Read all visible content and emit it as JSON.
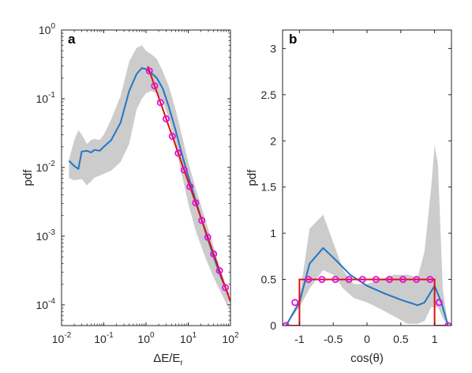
{
  "colors": {
    "band": "#cccccc",
    "median": "#1f77c4",
    "fit": "#e01010",
    "markers": "#e010e0",
    "axis": "#262626"
  },
  "chart_data": [
    {
      "type": "line",
      "panel_label": "a",
      "xlabel_main": "ΔE/E",
      "xlabel_sub": "r",
      "ylabel": "pdf",
      "xscale": "log",
      "yscale": "log",
      "xlim": [
        0.01,
        100
      ],
      "ylim": [
        5e-05,
        1
      ],
      "grid": false,
      "x_ticks": [
        0.01,
        0.1,
        1,
        10,
        100
      ],
      "x_tick_labels": [
        [
          "10",
          "-2"
        ],
        [
          "10",
          "-1"
        ],
        [
          "10",
          "0"
        ],
        [
          "10",
          "1"
        ],
        [
          "10",
          "2"
        ]
      ],
      "y_ticks": [
        0.0001,
        0.001,
        0.01,
        0.1,
        1
      ],
      "y_tick_labels": [
        [
          "10",
          "-4"
        ],
        [
          "10",
          "-3"
        ],
        [
          "10",
          "-2"
        ],
        [
          "10",
          "-1"
        ],
        [
          "10",
          "0"
        ]
      ],
      "series": [
        {
          "kind": "band",
          "upper": [
            [
              0.015,
              0.013
            ],
            [
              0.02,
              0.025
            ],
            [
              0.025,
              0.035
            ],
            [
              0.03,
              0.03
            ],
            [
              0.04,
              0.022
            ],
            [
              0.05,
              0.025
            ],
            [
              0.06,
              0.026
            ],
            [
              0.08,
              0.025
            ],
            [
              0.1,
              0.03
            ],
            [
              0.15,
              0.05
            ],
            [
              0.25,
              0.11
            ],
            [
              0.4,
              0.35
            ],
            [
              0.6,
              0.55
            ],
            [
              0.8,
              0.6
            ],
            [
              1.0,
              0.5
            ],
            [
              1.3,
              0.45
            ],
            [
              1.8,
              0.38
            ],
            [
              2.5,
              0.25
            ],
            [
              3.5,
              0.15
            ],
            [
              5,
              0.07
            ],
            [
              7,
              0.03
            ],
            [
              10,
              0.012
            ],
            [
              15,
              0.005
            ],
            [
              25,
              0.0018
            ],
            [
              40,
              0.0007
            ],
            [
              60,
              0.0003
            ],
            [
              90,
              0.00015
            ]
          ],
          "lower": [
            [
              0.015,
              0.007
            ],
            [
              0.02,
              0.0065
            ],
            [
              0.03,
              0.0068
            ],
            [
              0.04,
              0.0055
            ],
            [
              0.05,
              0.0063
            ],
            [
              0.06,
              0.0071
            ],
            [
              0.08,
              0.0076
            ],
            [
              0.1,
              0.0081
            ],
            [
              0.15,
              0.009
            ],
            [
              0.25,
              0.012
            ],
            [
              0.4,
              0.022
            ],
            [
              0.6,
              0.07
            ],
            [
              0.8,
              0.1
            ],
            [
              1.0,
              0.12
            ],
            [
              1.3,
              0.13
            ],
            [
              1.8,
              0.12
            ],
            [
              2.5,
              0.09
            ],
            [
              3.5,
              0.05
            ],
            [
              5,
              0.02
            ],
            [
              7,
              0.008
            ],
            [
              10,
              0.003
            ],
            [
              15,
              0.0012
            ],
            [
              25,
              0.0005
            ],
            [
              40,
              0.00025
            ],
            [
              60,
              0.00015
            ],
            [
              90,
              9e-05
            ]
          ]
        },
        {
          "kind": "line",
          "points": [
            [
              0.015,
              0.0125
            ],
            [
              0.02,
              0.0105
            ],
            [
              0.025,
              0.0095
            ],
            [
              0.03,
              0.017
            ],
            [
              0.04,
              0.0175
            ],
            [
              0.05,
              0.0165
            ],
            [
              0.06,
              0.018
            ],
            [
              0.08,
              0.0175
            ],
            [
              0.1,
              0.02
            ],
            [
              0.15,
              0.025
            ],
            [
              0.25,
              0.045
            ],
            [
              0.4,
              0.13
            ],
            [
              0.6,
              0.23
            ],
            [
              0.8,
              0.28
            ],
            [
              1.0,
              0.27
            ],
            [
              1.3,
              0.24
            ],
            [
              1.8,
              0.2
            ],
            [
              2.5,
              0.14
            ],
            [
              3.5,
              0.075
            ],
            [
              5,
              0.035
            ],
            [
              7,
              0.016
            ],
            [
              10,
              0.0075
            ],
            [
              15,
              0.0033
            ],
            [
              25,
              0.0012
            ],
            [
              40,
              0.0005
            ],
            [
              60,
              0.00025
            ],
            [
              90,
              0.00014
            ]
          ]
        },
        {
          "kind": "fit",
          "exponent": -1.75,
          "coef": 0.35,
          "x_range": [
            1.1,
            100
          ]
        },
        {
          "kind": "markers",
          "x": [
            1.2,
            1.6,
            2.2,
            3.0,
            4.2,
            5.8,
            8.0,
            11,
            15,
            21,
            29,
            40,
            55,
            76
          ]
        }
      ]
    },
    {
      "type": "line",
      "panel_label": "b",
      "xlabel": "cos(θ)",
      "ylabel": "pdf",
      "xscale": "linear",
      "yscale": "linear",
      "xlim": [
        -1.25,
        1.25
      ],
      "ylim": [
        0,
        3.2
      ],
      "grid": false,
      "x_ticks": [
        -1,
        -0.5,
        0,
        0.5,
        1
      ],
      "x_tick_labels": [
        "-1",
        "-0.5",
        "0",
        "0.5",
        "1"
      ],
      "y_ticks": [
        0,
        0.5,
        1,
        1.5,
        2,
        2.5,
        3
      ],
      "y_tick_labels": [
        "0",
        "0.5",
        "1",
        "1.5",
        "2",
        "2.5",
        "3"
      ],
      "series": [
        {
          "kind": "band",
          "upper": [
            [
              -1.2,
              0.0
            ],
            [
              -1.0,
              0.3
            ],
            [
              -0.85,
              1.05
            ],
            [
              -0.65,
              1.2
            ],
            [
              -0.5,
              0.9
            ],
            [
              -0.35,
              0.6
            ],
            [
              -0.2,
              0.45
            ],
            [
              0.0,
              0.45
            ],
            [
              0.2,
              0.5
            ],
            [
              0.4,
              0.55
            ],
            [
              0.6,
              0.55
            ],
            [
              0.75,
              0.52
            ],
            [
              0.85,
              0.8
            ],
            [
              0.95,
              1.5
            ],
            [
              1.0,
              1.95
            ],
            [
              1.05,
              1.75
            ],
            [
              1.12,
              0.4
            ],
            [
              1.2,
              0.0
            ]
          ],
          "lower": [
            [
              -1.2,
              0.0
            ],
            [
              -1.0,
              0.2
            ],
            [
              -0.85,
              0.4
            ],
            [
              -0.65,
              0.6
            ],
            [
              -0.5,
              0.55
            ],
            [
              -0.35,
              0.4
            ],
            [
              -0.2,
              0.3
            ],
            [
              0.0,
              0.25
            ],
            [
              0.2,
              0.18
            ],
            [
              0.4,
              0.1
            ],
            [
              0.6,
              0.02
            ],
            [
              0.75,
              0.02
            ],
            [
              0.85,
              0.05
            ],
            [
              0.95,
              0.2
            ],
            [
              1.0,
              0.2
            ],
            [
              1.05,
              0.2
            ],
            [
              1.12,
              0.08
            ],
            [
              1.2,
              0.0
            ]
          ]
        },
        {
          "kind": "line",
          "points": [
            [
              -1.2,
              0.0
            ],
            [
              -1.0,
              0.25
            ],
            [
              -0.85,
              0.67
            ],
            [
              -0.65,
              0.84
            ],
            [
              -0.45,
              0.7
            ],
            [
              -0.25,
              0.55
            ],
            [
              0.0,
              0.43
            ],
            [
              0.25,
              0.35
            ],
            [
              0.5,
              0.28
            ],
            [
              0.75,
              0.22
            ],
            [
              0.85,
              0.25
            ],
            [
              1.0,
              0.43
            ],
            [
              1.1,
              0.25
            ],
            [
              1.2,
              0.0
            ]
          ]
        },
        {
          "kind": "fit",
          "points": [
            [
              -1.2,
              0.0
            ],
            [
              -1.0,
              0.0
            ],
            [
              -1.0,
              0.5
            ],
            [
              1.0,
              0.5
            ],
            [
              1.0,
              0.0
            ],
            [
              1.2,
              0.0
            ]
          ]
        },
        {
          "kind": "markers",
          "points": [
            [
              -1.2,
              0.0
            ],
            [
              -1.067,
              0.25
            ],
            [
              -0.867,
              0.5
            ],
            [
              -0.667,
              0.5
            ],
            [
              -0.467,
              0.5
            ],
            [
              -0.267,
              0.5
            ],
            [
              -0.067,
              0.5
            ],
            [
              0.133,
              0.5
            ],
            [
              0.333,
              0.5
            ],
            [
              0.533,
              0.5
            ],
            [
              0.733,
              0.5
            ],
            [
              0.933,
              0.5
            ],
            [
              1.067,
              0.25
            ],
            [
              1.2,
              0.0
            ]
          ]
        }
      ]
    }
  ]
}
